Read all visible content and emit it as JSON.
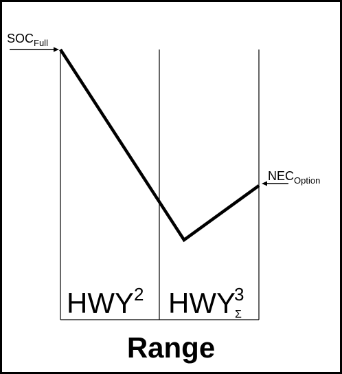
{
  "start_label": {
    "text": "SOC",
    "subscript": "Full"
  },
  "end_label": {
    "text": "NEC",
    "subscript": "Option"
  },
  "segments": [
    {
      "text": "HWY",
      "superscript": "2"
    },
    {
      "text": "HWY",
      "superscript": "3",
      "subscript": "Σ"
    }
  ],
  "axis_label": "Range"
}
